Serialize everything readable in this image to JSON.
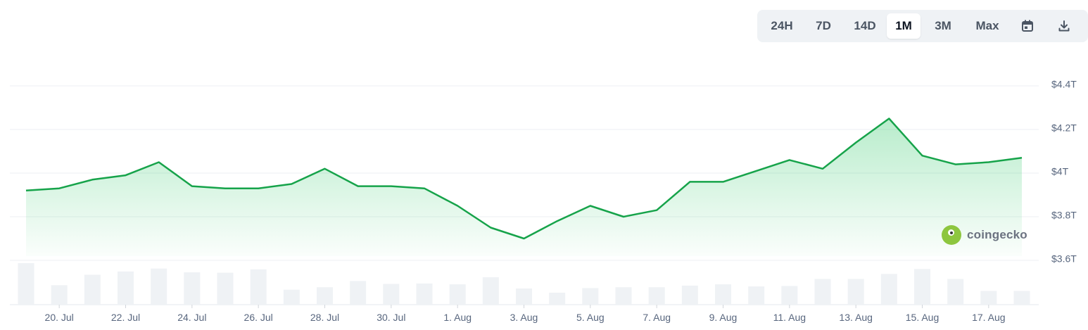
{
  "range_selector": {
    "options": [
      "24H",
      "7D",
      "14D",
      "1M",
      "3M",
      "Max"
    ],
    "active": "1M",
    "calendar_icon": "calendar-icon",
    "download_icon": "download-icon"
  },
  "watermark": {
    "text": "coingecko",
    "logo_icon": "gecko-logo-icon"
  },
  "colors": {
    "line": "#16a34a",
    "fill": "#22c55e",
    "volume": "#eff2f5",
    "grid": "#eceff3"
  },
  "chart_data": {
    "type": "area",
    "y_axis": {
      "ticks": [
        "$3.6T",
        "$3.8T",
        "$4T",
        "$4.2T",
        "$4.4T"
      ],
      "tick_values": [
        3.6,
        3.8,
        4.0,
        4.2,
        4.4
      ],
      "ylim": [
        3.6,
        4.4
      ],
      "position": "right",
      "unit": "trillion USD"
    },
    "x_axis": {
      "tick_labels": [
        "20. Jul",
        "22. Jul",
        "24. Jul",
        "26. Jul",
        "28. Jul",
        "30. Jul",
        "1. Aug",
        "3. Aug",
        "5. Aug",
        "7. Aug",
        "9. Aug",
        "11. Aug",
        "13. Aug",
        "15. Aug",
        "17. Aug"
      ]
    },
    "grid": true,
    "market_cap": {
      "dates": [
        "19. Jul",
        "20. Jul",
        "21. Jul",
        "22. Jul",
        "23. Jul",
        "24. Jul",
        "25. Jul",
        "26. Jul",
        "27. Jul",
        "28. Jul",
        "29. Jul",
        "30. Jul",
        "31. Jul",
        "1. Aug",
        "2. Aug",
        "3. Aug",
        "4. Aug",
        "5. Aug",
        "6. Aug",
        "7. Aug",
        "8. Aug",
        "9. Aug",
        "10. Aug",
        "11. Aug",
        "12. Aug",
        "13. Aug",
        "14. Aug",
        "15. Aug",
        "16. Aug",
        "17. Aug",
        "18. Aug"
      ],
      "values": [
        3.92,
        3.93,
        3.97,
        3.99,
        4.05,
        3.94,
        3.93,
        3.93,
        3.95,
        4.02,
        3.94,
        3.94,
        3.93,
        3.85,
        3.75,
        3.7,
        3.78,
        3.85,
        3.8,
        3.83,
        3.96,
        3.96,
        4.01,
        4.06,
        4.02,
        4.14,
        4.25,
        4.08,
        4.04,
        4.05,
        4.07
      ]
    },
    "volume": {
      "values": [
        1.0,
        0.47,
        0.72,
        0.8,
        0.87,
        0.78,
        0.77,
        0.85,
        0.36,
        0.42,
        0.57,
        0.5,
        0.51,
        0.49,
        0.66,
        0.39,
        0.29,
        0.4,
        0.42,
        0.42,
        0.46,
        0.49,
        0.44,
        0.45,
        0.62,
        0.62,
        0.74,
        0.86,
        0.62,
        0.33,
        0.33
      ],
      "unit": "relative"
    }
  }
}
